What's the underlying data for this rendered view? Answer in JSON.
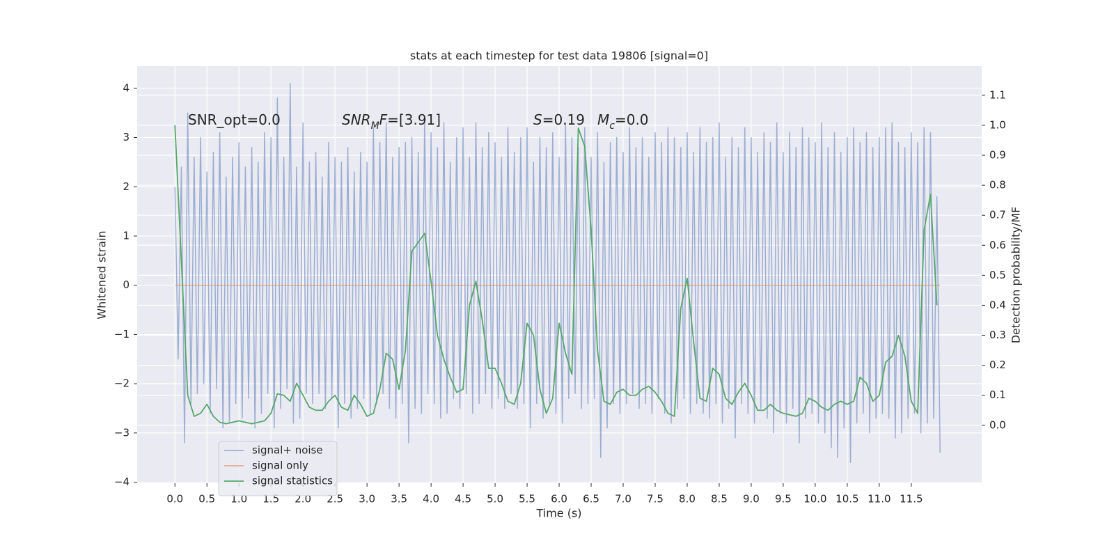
{
  "chart_data": {
    "type": "line",
    "title": "stats at each timestep for test data 19806 [signal=0]",
    "xlabel": "Time (s)",
    "ylabel": "Whitened strain",
    "y2label": "Detection probability/MF",
    "xlim": [
      -0.59,
      12.6
    ],
    "ylim": [
      -4.02,
      4.45
    ],
    "y2lim": [
      -0.193,
      1.197
    ],
    "xticks": [
      {
        "value": 0,
        "label": "0.0"
      },
      0.5,
      {
        "value": 1,
        "label": "1.0"
      },
      1.5,
      {
        "value": 2,
        "label": "2.0"
      },
      2.5,
      {
        "value": 3,
        "label": "3.0"
      },
      3.5,
      {
        "value": 4,
        "label": "4.0"
      },
      4.5,
      {
        "value": 5,
        "label": "5.0"
      },
      5.5,
      {
        "value": 6,
        "label": "6.0"
      },
      6.5,
      {
        "value": 7,
        "label": "7.0"
      },
      7.5,
      {
        "value": 8,
        "label": "8.0"
      },
      8.5,
      {
        "value": 9,
        "label": "9.0"
      },
      9.5,
      {
        "value": 10,
        "label": "10.0"
      },
      10.5,
      {
        "value": 11,
        "label": "11.0"
      },
      11.5
    ],
    "yticks": [
      {
        "value": -4,
        "label": "−4"
      },
      {
        "value": -3,
        "label": "−3"
      },
      {
        "value": -2,
        "label": "−2"
      },
      {
        "value": -1,
        "label": "−1"
      },
      0,
      1,
      2,
      3,
      4
    ],
    "y2ticks": [
      {
        "value": 0,
        "label": "0.0"
      },
      0.1,
      0.2,
      0.3,
      0.4,
      0.5,
      0.6,
      0.7,
      0.8,
      0.9,
      {
        "value": 1,
        "label": "1.0"
      },
      1.1
    ],
    "grid": true,
    "legend": "lower left",
    "annotations": [
      {
        "parts": [
          {
            "text": "SNR_opt=0.0"
          }
        ]
      },
      {
        "parts": [
          {
            "text": "SNR",
            "style": "italic"
          },
          {
            "text": "M",
            "style": "italic-sub"
          },
          {
            "text": "F",
            "style": "italic"
          },
          {
            "text": "=[3.91]"
          }
        ]
      },
      {
        "parts": [
          {
            "text": "S",
            "style": "italic"
          },
          {
            "text": "=0.19"
          }
        ]
      },
      {
        "parts": [
          {
            "text": "M",
            "style": "italic"
          },
          {
            "text": "c",
            "style": "italic-sub"
          },
          {
            "text": "=0.0"
          }
        ]
      }
    ],
    "series": [
      {
        "name": "signal+ noise",
        "color": "#4c72b0",
        "alpha": 0.5,
        "x": [
          0,
          0.05,
          0.1,
          0.15,
          0.2,
          0.25,
          0.3,
          0.35,
          0.4,
          0.45,
          0.5,
          0.55,
          0.6,
          0.65,
          0.7,
          0.75,
          0.8,
          0.85,
          0.9,
          0.95,
          1,
          1.05,
          1.1,
          1.15,
          1.2,
          1.25,
          1.3,
          1.35,
          1.4,
          1.45,
          1.5,
          1.55,
          1.6,
          1.65,
          1.7,
          1.75,
          1.8,
          1.85,
          1.9,
          1.95,
          2,
          2.05,
          2.1,
          2.15,
          2.2,
          2.25,
          2.3,
          2.35,
          2.4,
          2.45,
          2.5,
          2.55,
          2.6,
          2.65,
          2.7,
          2.75,
          2.8,
          2.85,
          2.9,
          2.95,
          3,
          3.05,
          3.1,
          3.15,
          3.2,
          3.25,
          3.3,
          3.35,
          3.4,
          3.45,
          3.5,
          3.55,
          3.6,
          3.65,
          3.7,
          3.75,
          3.8,
          3.85,
          3.9,
          3.95,
          4,
          4.05,
          4.1,
          4.15,
          4.2,
          4.25,
          4.3,
          4.35,
          4.4,
          4.45,
          4.5,
          4.55,
          4.6,
          4.65,
          4.7,
          4.75,
          4.8,
          4.85,
          4.9,
          4.95,
          5,
          5.05,
          5.1,
          5.15,
          5.2,
          5.25,
          5.3,
          5.35,
          5.4,
          5.45,
          5.5,
          5.55,
          5.6,
          5.65,
          5.7,
          5.75,
          5.8,
          5.85,
          5.9,
          5.95,
          6,
          6.05,
          6.1,
          6.15,
          6.2,
          6.25,
          6.3,
          6.35,
          6.4,
          6.45,
          6.5,
          6.55,
          6.6,
          6.65,
          6.7,
          6.75,
          6.8,
          6.85,
          6.9,
          6.95,
          7,
          7.05,
          7.1,
          7.15,
          7.2,
          7.25,
          7.3,
          7.35,
          7.4,
          7.45,
          7.5,
          7.55,
          7.6,
          7.65,
          7.7,
          7.75,
          7.8,
          7.85,
          7.9,
          7.95,
          8,
          8.05,
          8.1,
          8.15,
          8.2,
          8.25,
          8.3,
          8.35,
          8.4,
          8.45,
          8.5,
          8.55,
          8.6,
          8.65,
          8.7,
          8.75,
          8.8,
          8.85,
          8.9,
          8.95,
          9,
          9.05,
          9.1,
          9.15,
          9.2,
          9.25,
          9.3,
          9.35,
          9.4,
          9.45,
          9.5,
          9.55,
          9.6,
          9.65,
          9.7,
          9.75,
          9.8,
          9.85,
          9.9,
          9.95,
          10,
          10.05,
          10.1,
          10.15,
          10.2,
          10.25,
          10.3,
          10.35,
          10.4,
          10.45,
          10.5,
          10.55,
          10.6,
          10.65,
          10.7,
          10.75,
          10.8,
          10.85,
          10.9,
          10.95,
          11,
          11.05,
          11.1,
          11.15,
          11.2,
          11.25,
          11.3,
          11.35,
          11.4,
          11.45,
          11.5,
          11.55,
          11.6,
          11.65,
          11.7,
          11.75,
          11.8,
          11.85,
          11.9,
          11.95
        ],
        "values": [
          2.0,
          -1.5,
          2.4,
          -3.2,
          3.5,
          -2.4,
          2.6,
          -2.2,
          3.0,
          -2.0,
          2.3,
          -2.6,
          2.7,
          -2.1,
          3.1,
          -2.9,
          2.2,
          -2.8,
          2.6,
          -2.4,
          2.9,
          -2.7,
          2.4,
          -2.3,
          2.8,
          -2.9,
          2.5,
          -2.6,
          3.1,
          -2.2,
          3.0,
          -2.9,
          3.8,
          -2.5,
          2.6,
          -2.1,
          4.1,
          -2.8,
          2.4,
          -2.7,
          3.3,
          -2.2,
          2.5,
          -2.4,
          2.7,
          -2.2,
          2.2,
          -2.5,
          2.9,
          -2.3,
          2.6,
          -2.9,
          2.5,
          -2.4,
          2.8,
          -2.7,
          2.3,
          -2.5,
          2.7,
          -2.3,
          2.5,
          -2.6,
          3.2,
          -2.4,
          2.9,
          -2.2,
          3.3,
          -2.5,
          2.6,
          -2.7,
          2.8,
          -2.4,
          2.9,
          -3.2,
          3.0,
          -2.5,
          2.7,
          -2.6,
          3.4,
          -2.2,
          3.1,
          -2.4,
          2.8,
          -2.7,
          3.3,
          -2.6,
          2.5,
          -2.3,
          3.0,
          -2.5,
          3.2,
          -2.2,
          2.6,
          -2.6,
          3.3,
          -2.4,
          2.8,
          -2.2,
          3.1,
          -2.5,
          2.9,
          -2.3,
          2.6,
          -2.5,
          3.2,
          -2.2,
          2.7,
          -2.5,
          3.0,
          -2.4,
          3.2,
          -2.9,
          2.5,
          -2.4,
          3.0,
          -2.7,
          2.8,
          -2.4,
          3.1,
          -2.6,
          2.6,
          -2.8,
          3.3,
          -2.3,
          3.0,
          -2.2,
          2.8,
          -2.5,
          3.2,
          -2.4,
          2.6,
          -2.3,
          3.1,
          -3.5,
          2.5,
          -2.9,
          2.9,
          -2.4,
          3.0,
          -2.6,
          2.7,
          -2.4,
          3.2,
          -2.2,
          2.8,
          -2.5,
          3.0,
          -2.4,
          2.6,
          -2.6,
          3.1,
          -2.3,
          2.9,
          -2.6,
          3.2,
          -2.8,
          3.0,
          -2.5,
          2.8,
          -2.3,
          3.1,
          -2.6,
          2.7,
          -2.4,
          3.2,
          -2.6,
          2.9,
          -2.7,
          3.0,
          -2.4,
          3.3,
          -2.8,
          2.6,
          -2.5,
          3.0,
          -3.1,
          2.8,
          -2.4,
          3.2,
          -2.6,
          3.0,
          -2.8,
          2.7,
          -2.5,
          3.1,
          -2.7,
          2.9,
          -3.0,
          3.3,
          -2.6,
          2.7,
          -2.8,
          3.1,
          -2.5,
          2.8,
          -3.2,
          3.2,
          -2.7,
          3.0,
          -2.6,
          2.9,
          -2.8,
          3.3,
          -3.0,
          2.8,
          -3.3,
          3.1,
          -3.5,
          2.7,
          -2.9,
          3.0,
          -3.6,
          3.2,
          -2.8,
          2.9,
          -2.6,
          3.1,
          -3.0,
          2.8,
          -2.7,
          3.0,
          -2.6,
          3.2,
          -2.7,
          3.3,
          -3.1,
          2.9,
          -3.0,
          2.8,
          -2.7,
          3.1,
          -2.6,
          2.9,
          -3.0,
          3.2,
          -2.8,
          3.1,
          -2.7,
          1.8,
          -3.4
        ]
      },
      {
        "name": "signal only",
        "color": "#dd8452",
        "alpha": 0.6,
        "x": [
          0,
          11.95
        ],
        "values": [
          0,
          0
        ]
      },
      {
        "name": "signal statistics",
        "color": "#55a868",
        "alpha": 1,
        "axis": "y2",
        "x": [
          0,
          0.1,
          0.2,
          0.3,
          0.4,
          0.5,
          0.6,
          0.7,
          0.8,
          0.9,
          1,
          1.1,
          1.2,
          1.3,
          1.4,
          1.5,
          1.6,
          1.7,
          1.8,
          1.9,
          2,
          2.1,
          2.2,
          2.3,
          2.4,
          2.5,
          2.6,
          2.7,
          2.8,
          2.9,
          3,
          3.1,
          3.2,
          3.3,
          3.4,
          3.5,
          3.6,
          3.7,
          3.8,
          3.9,
          4,
          4.1,
          4.2,
          4.3,
          4.4,
          4.5,
          4.6,
          4.7,
          4.8,
          4.9,
          5,
          5.1,
          5.2,
          5.3,
          5.4,
          5.5,
          5.6,
          5.7,
          5.8,
          5.9,
          6,
          6.1,
          6.2,
          6.3,
          6.4,
          6.5,
          6.6,
          6.7,
          6.8,
          6.9,
          7,
          7.1,
          7.2,
          7.3,
          7.4,
          7.5,
          7.6,
          7.7,
          7.8,
          7.9,
          8,
          8.1,
          8.2,
          8.3,
          8.4,
          8.5,
          8.6,
          8.7,
          8.8,
          8.9,
          9,
          9.1,
          9.2,
          9.3,
          9.4,
          9.5,
          9.6,
          9.7,
          9.8,
          9.9,
          10,
          10.1,
          10.2,
          10.3,
          10.4,
          10.5,
          10.6,
          10.7,
          10.8,
          10.9,
          11,
          11.1,
          11.2,
          11.3,
          11.4,
          11.5,
          11.6,
          11.7,
          11.8,
          11.9
        ],
        "values": [
          1.0,
          0.55,
          0.1,
          0.03,
          0.04,
          0.07,
          0.03,
          0.01,
          0.005,
          0.01,
          0.015,
          0.01,
          0.005,
          0.01,
          0.015,
          0.04,
          0.105,
          0.1,
          0.08,
          0.14,
          0.1,
          0.06,
          0.05,
          0.05,
          0.08,
          0.1,
          0.06,
          0.05,
          0.1,
          0.07,
          0.03,
          0.04,
          0.12,
          0.24,
          0.22,
          0.12,
          0.25,
          0.58,
          0.61,
          0.64,
          0.48,
          0.3,
          0.22,
          0.16,
          0.11,
          0.12,
          0.4,
          0.48,
          0.35,
          0.19,
          0.19,
          0.14,
          0.08,
          0.07,
          0.14,
          0.34,
          0.3,
          0.12,
          0.04,
          0.09,
          0.34,
          0.24,
          0.17,
          0.99,
          0.93,
          0.65,
          0.25,
          0.08,
          0.07,
          0.11,
          0.12,
          0.1,
          0.1,
          0.12,
          0.13,
          0.11,
          0.08,
          0.04,
          0.03,
          0.39,
          0.49,
          0.28,
          0.09,
          0.08,
          0.19,
          0.17,
          0.09,
          0.07,
          0.11,
          0.14,
          0.1,
          0.05,
          0.05,
          0.07,
          0.05,
          0.04,
          0.035,
          0.03,
          0.04,
          0.09,
          0.08,
          0.06,
          0.05,
          0.07,
          0.08,
          0.07,
          0.08,
          0.16,
          0.14,
          0.08,
          0.1,
          0.21,
          0.23,
          0.3,
          0.23,
          0.08,
          0.04,
          0.65,
          0.77,
          0.4
        ]
      }
    ]
  }
}
